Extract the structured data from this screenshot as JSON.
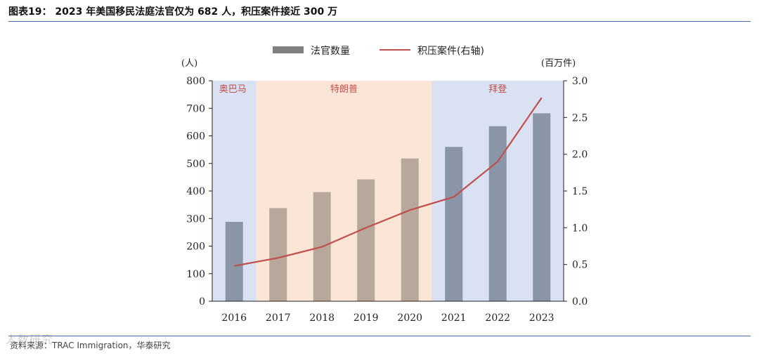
{
  "figure": {
    "title": "图表19：  2023 年美国移民法庭法官仅为 682 人，积压案件接近 300 万",
    "source": "资料来源：TRAC Immigration，华泰研究",
    "watermark": "人数研究"
  },
  "chart_data": {
    "type": "bar",
    "categories": [
      "2016",
      "2017",
      "2018",
      "2019",
      "2020",
      "2021",
      "2022",
      "2023"
    ],
    "series": [
      {
        "name": "法官数量",
        "axis": "left",
        "type": "bar",
        "values": [
          288,
          338,
          396,
          442,
          518,
          560,
          635,
          682
        ]
      },
      {
        "name": "积压案件(右轴)",
        "axis": "right",
        "type": "line",
        "values": [
          0.48,
          0.59,
          0.74,
          1.0,
          1.24,
          1.42,
          1.9,
          2.77
        ]
      }
    ],
    "left_axis": {
      "unit": "(人)",
      "min": 0,
      "max": 800,
      "ticks": [
        "0",
        "100",
        "200",
        "300",
        "400",
        "500",
        "600",
        "700",
        "800"
      ]
    },
    "right_axis": {
      "unit": "(百万件)",
      "min": 0,
      "max": 3,
      "ticks": [
        "0.0",
        "0.5",
        "1.0",
        "1.5",
        "2.0",
        "2.5",
        "3.0"
      ]
    },
    "periods": [
      {
        "label": "奥巴马",
        "from": "2016",
        "to": "2016",
        "fill": "#d9e1f2",
        "bar": "#8a96a8"
      },
      {
        "label": "特朗普",
        "from": "2017",
        "to": "2020",
        "fill": "#fbe5d6",
        "bar": "#b8a79b"
      },
      {
        "label": "拜登",
        "from": "2021",
        "to": "2023",
        "fill": "#d9e1f2",
        "bar": "#8a96a8"
      }
    ],
    "colors": {
      "line": "#c0504d",
      "legend_bar": "#7f7f7f",
      "period_label": "#c0504d"
    }
  }
}
